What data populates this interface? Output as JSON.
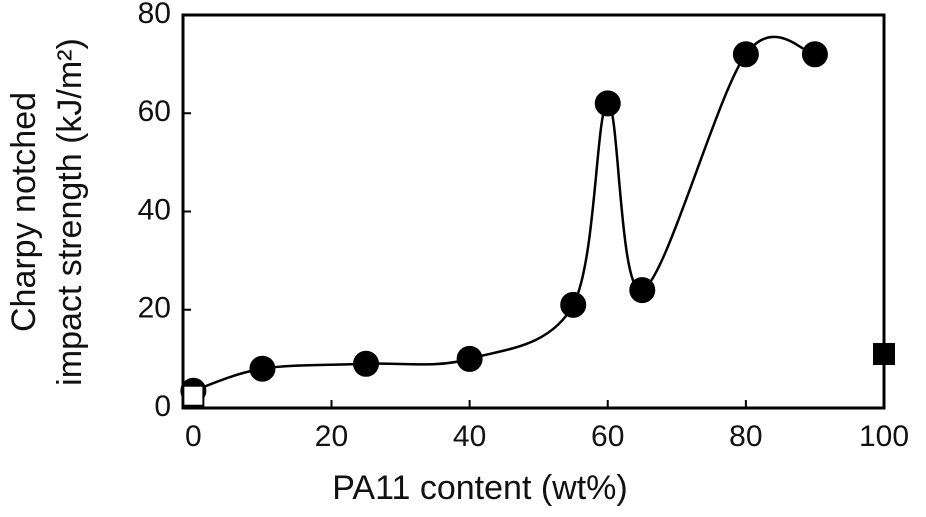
{
  "chart_data": {
    "type": "scatter",
    "x_label": "PA11 content (wt%)",
    "y_label": [
      "Charpy notched",
      "impact strength (kJ/m²)"
    ],
    "xlim": [
      -1.5,
      100
    ],
    "ylim": [
      0,
      80
    ],
    "xticks": [
      0,
      20,
      40,
      60,
      80,
      100
    ],
    "yticks": [
      0,
      20,
      40,
      60,
      80
    ],
    "series": [
      {
        "marker": "circle",
        "color": "#000000",
        "fill": "#000000",
        "curve": true,
        "x": [
          0,
          10,
          25,
          40,
          55,
          60,
          65,
          80,
          90
        ],
        "values": [
          3.5,
          8,
          9,
          10,
          21,
          62,
          24,
          72,
          72
        ]
      },
      {
        "marker": "square",
        "color": "#000000",
        "fill": "#ffffff",
        "curve": false,
        "x": [
          0
        ],
        "values": [
          2.5
        ]
      },
      {
        "marker": "square",
        "color": "#000000",
        "fill": "#000000",
        "curve": false,
        "x": [
          100
        ],
        "values": [
          11
        ]
      }
    ]
  }
}
